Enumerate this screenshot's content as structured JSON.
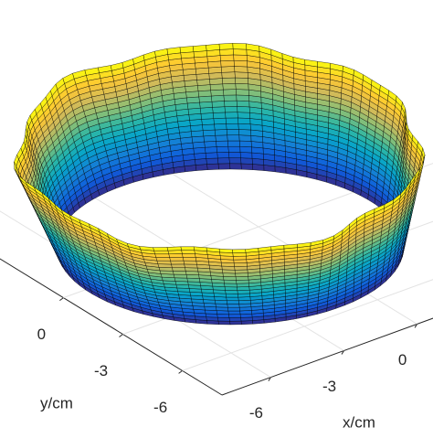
{
  "chart_data": {
    "type": "surface",
    "colormap": "parula",
    "xlabel": "x/cm",
    "ylabel": "y/cm",
    "xlim": [
      -8,
      8
    ],
    "ylim": [
      -8,
      8
    ],
    "xticks": [
      -6,
      -3,
      0
    ],
    "yticks": [
      -6,
      -3,
      0
    ],
    "grid": true
  }
}
